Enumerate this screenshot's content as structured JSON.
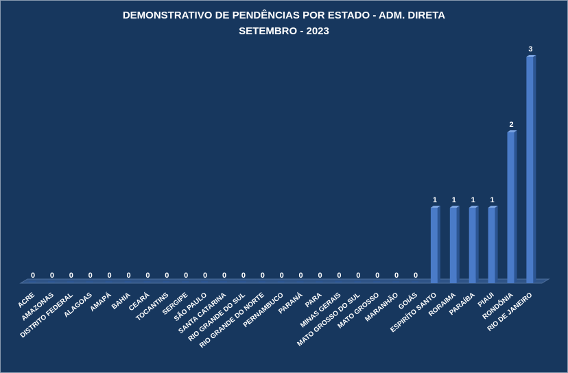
{
  "chart_data": {
    "type": "bar",
    "title": "DEMONSTRATIVO DE PENDÊNCIAS POR  ESTADO - ADM. DIRETA",
    "subtitle": "SETEMBRO - 2023",
    "categories": [
      "ACRE",
      "AMAZONAS",
      "DISTRITO FEDERAL",
      "ALAGOAS",
      "AMAPÁ",
      "BAHIA",
      "CEARÁ",
      "TOCANTINS",
      "SERGIPE",
      "SÃO PAULO",
      "SANTA CATARINA",
      "RIO GRANDE  DO SUL",
      "RIO GRANDE DO NORTE",
      "PERNAMBUCO",
      "PARANÁ",
      "PARA",
      "MINAS GERAIS",
      "MATO GROSSO  DO SUL",
      "MATO GROSSO",
      "MARANHÃO",
      "GOIÁS",
      "ESPIRÍTO SANTO",
      "RORAIMA",
      "PARAÍBA",
      "PIAUI",
      "RONDÔNIA",
      "RIO DE JANEIRO"
    ],
    "values": [
      0,
      0,
      0,
      0,
      0,
      0,
      0,
      0,
      0,
      0,
      0,
      0,
      0,
      0,
      0,
      0,
      0,
      0,
      0,
      0,
      0,
      1,
      1,
      1,
      1,
      2,
      3
    ],
    "xlabel": "",
    "ylabel": "",
    "ylim": [
      0,
      3
    ],
    "grid": false,
    "legend": "none",
    "data_labels": true,
    "colors": {
      "background": "#17375e",
      "bar": "#4a7bc8",
      "bar_side": "#2c5592",
      "bar_top": "#7aa3e0",
      "floor": "#2f5487",
      "text": "#ffffff"
    }
  }
}
